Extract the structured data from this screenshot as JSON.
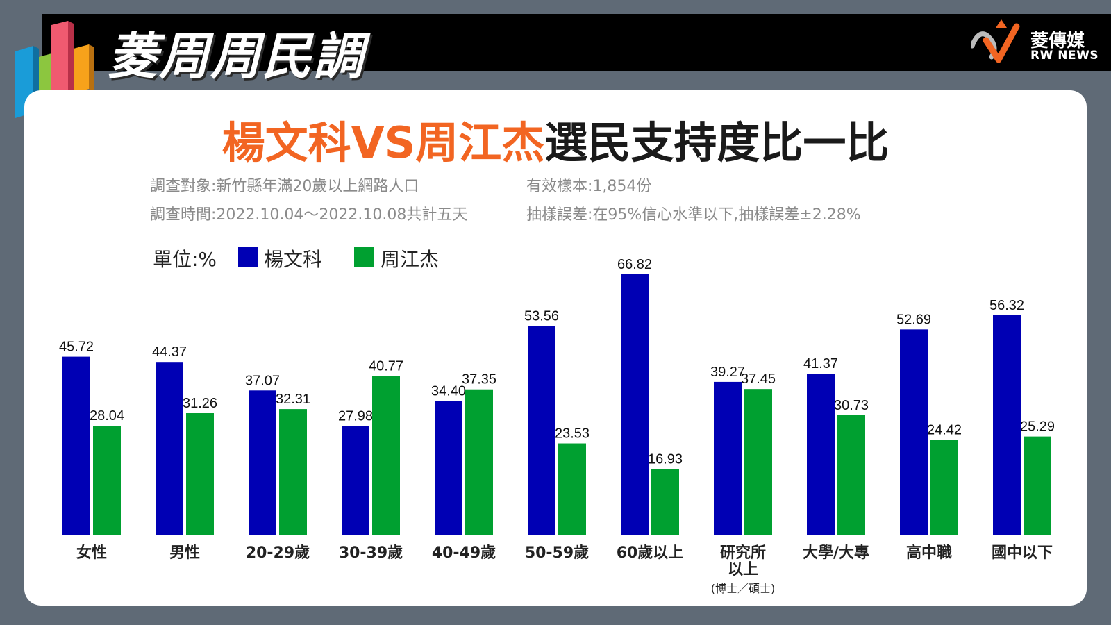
{
  "header": {
    "show_title": "菱周周民調",
    "logo_name": "菱傳媒",
    "logo_en": "RW NEWS"
  },
  "headline": {
    "orange_part": "楊文科VS周江杰",
    "black_part": "選民支持度比一比"
  },
  "survey_info": {
    "target": "調查對象:新竹縣年滿20歲以上網路人口",
    "sample": "有效樣本:1,854份",
    "period": "調查時間:2022.10.04～2022.10.08共計五天",
    "error": "抽樣誤差:在95%信心水準以下,抽樣誤差±2.28%"
  },
  "legend": {
    "unit": "單位:%",
    "items": [
      {
        "label": "楊文科",
        "color": "#0000b4"
      },
      {
        "label": "周江杰",
        "color": "#00a030"
      }
    ]
  },
  "chart_data": {
    "type": "bar",
    "categories": [
      "女性",
      "男性",
      "20-29歲",
      "30-39歲",
      "40-49歲",
      "50-59歲",
      "60歲以上",
      "研究所以上",
      "大學/大專",
      "高中職",
      "國中以下"
    ],
    "category_sublabels": {
      "研究所以上": "(博士／碩士)"
    },
    "series": [
      {
        "name": "楊文科",
        "color": "#0000b4",
        "values": [
          45.72,
          44.37,
          37.07,
          27.98,
          34.4,
          53.56,
          66.82,
          39.27,
          41.37,
          52.69,
          56.32
        ]
      },
      {
        "name": "周江杰",
        "color": "#00a030",
        "values": [
          28.04,
          31.26,
          32.31,
          40.77,
          37.35,
          23.53,
          16.93,
          37.45,
          30.73,
          24.42,
          25.29
        ]
      }
    ],
    "value_labels": [
      [
        "45.72",
        "44.37",
        "37.07",
        "27.98",
        "34.40",
        "53.56",
        "66.82",
        "39.27",
        "41.37",
        "52.69",
        "56.32"
      ],
      [
        "28.04",
        "31.26",
        "32.31",
        "40.77",
        "37.35",
        "23.53",
        "16.93",
        "37.45",
        "30.73",
        "24.42",
        "25.29"
      ]
    ],
    "ylabel": "單位:%",
    "ylim": [
      0,
      70
    ],
    "grid": false,
    "legend_position": "top-left"
  }
}
